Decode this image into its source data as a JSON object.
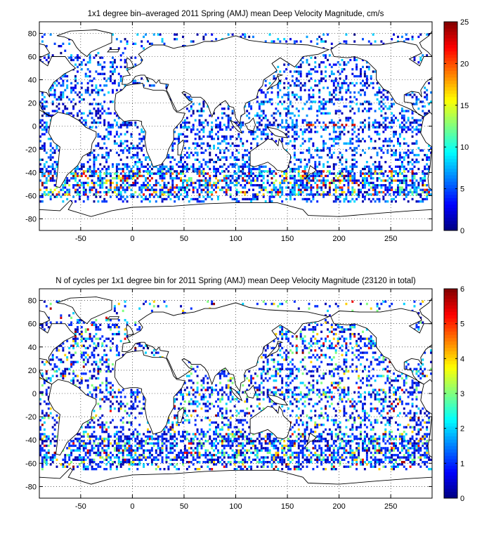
{
  "panels": [
    {
      "title": "1x1 degree bin–averaged 2011 Spring (AMJ) mean Deep Velocity Magnitude, cm/s",
      "type": "map",
      "x_ticks": [
        "-50",
        "0",
        "50",
        "100",
        "150",
        "200",
        "250"
      ],
      "y_ticks": [
        "80",
        "60",
        "40",
        "20",
        "0",
        "-20",
        "-40",
        "-60",
        "-80"
      ],
      "colorbar": {
        "min": 0,
        "max": 25,
        "ticks": [
          "25",
          "20",
          "15",
          "10",
          "5",
          "0"
        ]
      }
    },
    {
      "title": "N of cycles per 1x1 degree bin for 2011 Spring (AMJ) mean Deep Velocity Magnitude (23120 in total)",
      "type": "map",
      "x_ticks": [
        "-50",
        "0",
        "50",
        "100",
        "150",
        "200",
        "250"
      ],
      "y_ticks": [
        "80",
        "60",
        "40",
        "20",
        "0",
        "-20",
        "-40",
        "-60",
        "-80"
      ],
      "colorbar": {
        "min": 0,
        "max": 6,
        "ticks": [
          "6",
          "5",
          "4",
          "3",
          "2",
          "1",
          "0"
        ]
      }
    }
  ],
  "style": {
    "background": "#ffffff",
    "land_outline": "#000000",
    "grid": "dotted",
    "colormap": "jet"
  }
}
